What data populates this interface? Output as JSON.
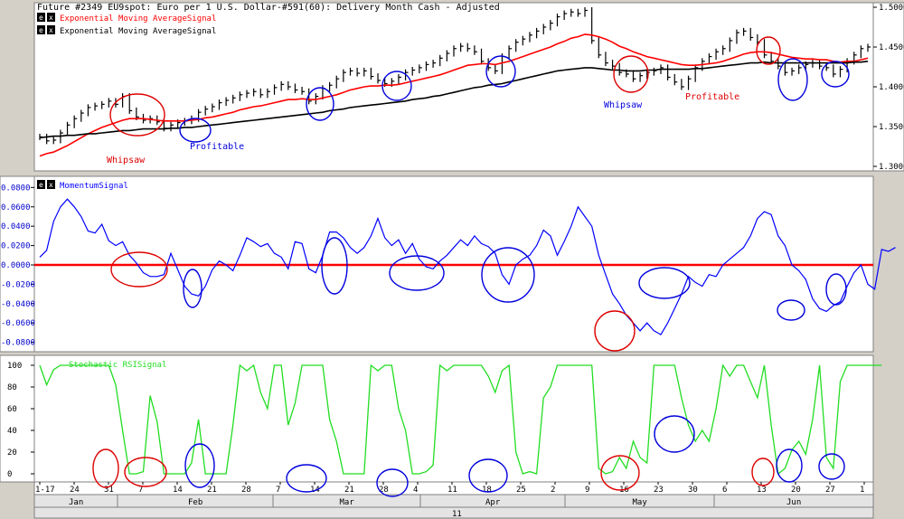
{
  "header": "Future #2349 EU9spot: Euro per 1 U.S. Dollar-#591(60): Delivery Month Cash -  Adjusted",
  "legend": [
    {
      "btn1": "e",
      "btn2": "x",
      "label": "Exponential Moving AverageSignal",
      "color": "#ff0000"
    },
    {
      "btn1": "e",
      "btn2": "x",
      "label": "Exponential Moving AverageSignal",
      "color": "#000000"
    }
  ],
  "panel2_label": {
    "btn1": "e",
    "btn2": "x",
    "label": "MomentumSignal",
    "color": "#0000ff"
  },
  "panel3_label": {
    "label": "Stochastic RSISignal",
    "color": "#22dd22"
  },
  "annotations": [
    {
      "text": "Whipsaw",
      "color": "#dd0000"
    },
    {
      "text": "Profitable",
      "color": "#0000dd"
    },
    {
      "text": "Whipsaw",
      "color": "#0000dd"
    },
    {
      "text": "Profitable",
      "color": "#dd0000"
    }
  ],
  "x_axis": {
    "day_ticks": [
      "1-17",
      "24",
      "31",
      "7",
      "14",
      "21",
      "28",
      "7",
      "14",
      "21",
      "28",
      "4",
      "11",
      "18",
      "25",
      "2",
      "9",
      "16",
      "23",
      "30",
      "6",
      "13",
      "20",
      "27",
      "1"
    ],
    "months": [
      "Jan",
      "Feb",
      "Mar",
      "Apr",
      "May",
      "Jun"
    ],
    "year": "11"
  },
  "chart_data": [
    {
      "type": "line",
      "title": "Future #2349 EU9spot: Euro per 1 U.S. Dollar-#591(60): Delivery Month Cash -  Adjusted",
      "y_ticks": [
        "1.5000",
        "1.4500",
        "1.4000",
        "1.3500",
        "1.3000"
      ],
      "ylim": [
        1.3,
        1.5
      ],
      "price_close": [
        1.337,
        1.332,
        1.333,
        1.342,
        1.352,
        1.36,
        1.367,
        1.374,
        1.376,
        1.378,
        1.382,
        1.378,
        1.388,
        1.37,
        1.362,
        1.358,
        1.36,
        1.356,
        1.348,
        1.352,
        1.355,
        1.357,
        1.36,
        1.368,
        1.372,
        1.375,
        1.38,
        1.383,
        1.386,
        1.39,
        1.392,
        1.394,
        1.39,
        1.394,
        1.399,
        1.403,
        1.4,
        1.396,
        1.394,
        1.382,
        1.388,
        1.398,
        1.402,
        1.41,
        1.418,
        1.42,
        1.417,
        1.42,
        1.413,
        1.408,
        1.404,
        1.407,
        1.412,
        1.418,
        1.421,
        1.424,
        1.428,
        1.43,
        1.436,
        1.442,
        1.448,
        1.451,
        1.448,
        1.444,
        1.432,
        1.424,
        1.42,
        1.438,
        1.448,
        1.456,
        1.46,
        1.465,
        1.47,
        1.475,
        1.48,
        1.488,
        1.492,
        1.494,
        1.492,
        1.496,
        1.458,
        1.44,
        1.43,
        1.426,
        1.418,
        1.416,
        1.41,
        1.414,
        1.418,
        1.42,
        1.424,
        1.412,
        1.406,
        1.4,
        1.41,
        1.424,
        1.432,
        1.438,
        1.444,
        1.448,
        1.458,
        1.468,
        1.47,
        1.462,
        1.456,
        1.44,
        1.432,
        1.426,
        1.418,
        1.42,
        1.424,
        1.428,
        1.43,
        1.426,
        1.424,
        1.416,
        1.422,
        1.432,
        1.44,
        1.448,
        1.45
      ],
      "series": [
        {
          "name": "Exponential Moving AverageSignal",
          "color": "#ff0000",
          "values": [
            1.313,
            1.316,
            1.318,
            1.322,
            1.326,
            1.331,
            1.336,
            1.341,
            1.345,
            1.349,
            1.352,
            1.355,
            1.358,
            1.36,
            1.36,
            1.36,
            1.359,
            1.358,
            1.357,
            1.357,
            1.357,
            1.357,
            1.358,
            1.359,
            1.361,
            1.362,
            1.364,
            1.366,
            1.368,
            1.371,
            1.373,
            1.375,
            1.376,
            1.378,
            1.38,
            1.382,
            1.384,
            1.384,
            1.385,
            1.384,
            1.384,
            1.386,
            1.388,
            1.39,
            1.393,
            1.396,
            1.398,
            1.4,
            1.401,
            1.401,
            1.402,
            1.402,
            1.403,
            1.405,
            1.407,
            1.409,
            1.411,
            1.413,
            1.415,
            1.418,
            1.421,
            1.424,
            1.427,
            1.428,
            1.429,
            1.429,
            1.428,
            1.43,
            1.432,
            1.435,
            1.438,
            1.441,
            1.444,
            1.447,
            1.45,
            1.454,
            1.457,
            1.461,
            1.463,
            1.466,
            1.465,
            1.463,
            1.46,
            1.456,
            1.451,
            1.448,
            1.444,
            1.441,
            1.438,
            1.436,
            1.434,
            1.432,
            1.43,
            1.428,
            1.427,
            1.427,
            1.428,
            1.429,
            1.43,
            1.432,
            1.435,
            1.438,
            1.441,
            1.443,
            1.444,
            1.444,
            1.443,
            1.441,
            1.439,
            1.437,
            1.436,
            1.435,
            1.435,
            1.434,
            1.434,
            1.432,
            1.431,
            1.432,
            1.432,
            1.434,
            1.436
          ]
        },
        {
          "name": "Exponential Moving AverageSignal",
          "color": "#000000",
          "values": [
            1.336,
            1.337,
            1.338,
            1.338,
            1.339,
            1.339,
            1.34,
            1.341,
            1.341,
            1.342,
            1.343,
            1.344,
            1.345,
            1.345,
            1.346,
            1.347,
            1.347,
            1.347,
            1.347,
            1.348,
            1.348,
            1.349,
            1.349,
            1.35,
            1.351,
            1.352,
            1.353,
            1.354,
            1.355,
            1.356,
            1.357,
            1.358,
            1.359,
            1.36,
            1.361,
            1.362,
            1.363,
            1.364,
            1.365,
            1.366,
            1.367,
            1.368,
            1.37,
            1.371,
            1.372,
            1.374,
            1.375,
            1.376,
            1.377,
            1.378,
            1.379,
            1.38,
            1.381,
            1.382,
            1.384,
            1.385,
            1.386,
            1.388,
            1.389,
            1.391,
            1.393,
            1.395,
            1.397,
            1.399,
            1.4,
            1.402,
            1.403,
            1.404,
            1.406,
            1.408,
            1.41,
            1.412,
            1.414,
            1.416,
            1.418,
            1.42,
            1.421,
            1.422,
            1.423,
            1.424,
            1.424,
            1.423,
            1.422,
            1.421,
            1.421,
            1.42,
            1.42,
            1.42,
            1.421,
            1.421,
            1.422,
            1.422,
            1.422,
            1.422,
            1.422,
            1.423,
            1.423,
            1.424,
            1.425,
            1.426,
            1.427,
            1.428,
            1.429,
            1.43,
            1.43,
            1.431,
            1.43,
            1.43,
            1.43,
            1.43,
            1.43,
            1.43,
            1.43,
            1.43,
            1.43,
            1.43,
            1.43,
            1.43,
            1.431,
            1.431,
            1.432
          ]
        }
      ]
    },
    {
      "type": "line",
      "y_ticks": [
        "0.0800",
        "0.0600",
        "0.0400",
        "0.0200",
        "0.0000",
        "-0.0200",
        "-0.0400",
        "-0.0600",
        "-0.0800"
      ],
      "ylim": [
        -0.085,
        0.085
      ],
      "series": [
        {
          "name": "MomentumSignal",
          "color": "#0000ff",
          "values": [
            0.008,
            0.015,
            0.045,
            0.06,
            0.068,
            0.06,
            0.05,
            0.035,
            0.033,
            0.042,
            0.025,
            0.02,
            0.024,
            0.01,
            0.002,
            -0.008,
            -0.012,
            -0.012,
            -0.01,
            0.012,
            -0.005,
            -0.022,
            -0.03,
            -0.032,
            -0.022,
            -0.005,
            0.004,
            0.0,
            -0.006,
            0.01,
            0.028,
            0.024,
            0.019,
            0.022,
            0.012,
            0.008,
            -0.004,
            0.024,
            0.022,
            -0.004,
            -0.008,
            0.01,
            0.034,
            0.034,
            0.028,
            0.018,
            0.012,
            0.018,
            0.03,
            0.048,
            0.028,
            0.02,
            0.026,
            0.012,
            0.022,
            0.006,
            -0.002,
            -0.004,
            0.004,
            0.01,
            0.018,
            0.026,
            0.02,
            0.03,
            0.022,
            0.019,
            0.012,
            -0.01,
            -0.02,
            0.0,
            0.006,
            0.01,
            0.02,
            0.036,
            0.03,
            0.01,
            0.024,
            0.04,
            0.06,
            0.05,
            0.04,
            0.01,
            -0.01,
            -0.03,
            -0.04,
            -0.052,
            -0.06,
            -0.068,
            -0.06,
            -0.068,
            -0.072,
            -0.06,
            -0.045,
            -0.03,
            -0.012,
            -0.018,
            -0.022,
            -0.01,
            -0.012,
            0.0,
            0.006,
            0.012,
            0.018,
            0.03,
            0.048,
            0.055,
            0.052,
            0.03,
            0.02,
            0.0,
            -0.006,
            -0.015,
            -0.035,
            -0.045,
            -0.048,
            -0.042,
            -0.038,
            -0.022,
            -0.008,
            0.0,
            -0.02,
            -0.025,
            0.016,
            0.014,
            0.018
          ]
        },
        {
          "name": "",
          "color": "#ff0000",
          "values": [
            0.0
          ]
        }
      ]
    },
    {
      "type": "line",
      "y_ticks": [
        "100",
        "80",
        "60",
        "40",
        "20",
        "0"
      ],
      "ylim": [
        -5,
        105
      ],
      "series": [
        {
          "name": "Stochastic RSISignal",
          "color": "#22dd22",
          "values": [
            100,
            82,
            96,
            100,
            100,
            100,
            100,
            100,
            100,
            100,
            100,
            82,
            40,
            0,
            0,
            2,
            72,
            48,
            0,
            0,
            0,
            0,
            10,
            50,
            0,
            0,
            0,
            0,
            45,
            100,
            95,
            100,
            75,
            60,
            100,
            100,
            45,
            65,
            100,
            100,
            100,
            100,
            50,
            30,
            0,
            0,
            0,
            0,
            100,
            95,
            100,
            100,
            60,
            40,
            0,
            0,
            2,
            8,
            100,
            95,
            100,
            100,
            100,
            100,
            100,
            90,
            75,
            95,
            100,
            20,
            0,
            2,
            0,
            70,
            80,
            100,
            100,
            100,
            100,
            100,
            100,
            5,
            0,
            2,
            15,
            5,
            30,
            15,
            10,
            100,
            100,
            100,
            100,
            70,
            45,
            30,
            40,
            30,
            60,
            100,
            90,
            100,
            100,
            85,
            70,
            100,
            45,
            0,
            5,
            22,
            30,
            18,
            50,
            100,
            15,
            5,
            85,
            100,
            100,
            100,
            100,
            100,
            100
          ]
        }
      ]
    }
  ]
}
